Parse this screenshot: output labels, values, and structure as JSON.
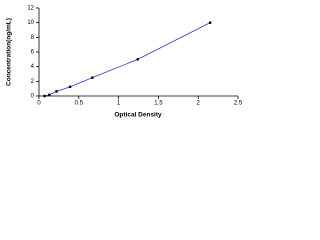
{
  "chart_data": {
    "type": "line",
    "x_label": "Optical Density",
    "y_label": "Concentration(ng/mL)",
    "x": [
      0.07,
      0.13,
      0.22,
      0.39,
      0.67,
      1.24,
      2.15
    ],
    "values": [
      0,
      0.16,
      0.63,
      1.25,
      2.5,
      5,
      10
    ],
    "color": "#3333cc",
    "marker_color": "#000000",
    "xlim": [
      0,
      2.5
    ],
    "xticks": [
      0,
      0.5,
      1,
      1.5,
      2,
      2.5
    ],
    "ylim": [
      0,
      12
    ],
    "yticks": [
      0,
      2,
      4,
      6,
      8,
      10,
      12
    ],
    "grid": false
  }
}
